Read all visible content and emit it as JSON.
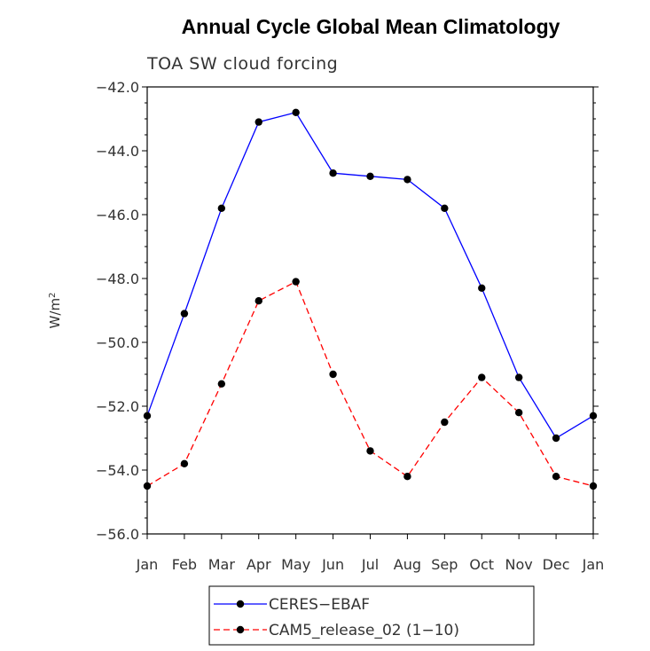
{
  "chart_data": {
    "type": "line",
    "title": "Annual Cycle Global Mean Climatology",
    "subtitle": "TOA SW cloud forcing",
    "ylabel_base": "W/m",
    "ylabel_sup": "2",
    "xlabel": "",
    "categories": [
      "Jan",
      "Feb",
      "Mar",
      "Apr",
      "May",
      "Jun",
      "Jul",
      "Aug",
      "Sep",
      "Oct",
      "Nov",
      "Dec",
      "Jan"
    ],
    "ylim": [
      -56.0,
      -42.0
    ],
    "yticks": [
      -42.0,
      -44.0,
      -46.0,
      -48.0,
      -50.0,
      -52.0,
      -54.0,
      -56.0
    ],
    "ytick_labels": [
      "−42.0",
      "−44.0",
      "−46.0",
      "−48.0",
      "−50.0",
      "−52.0",
      "−54.0",
      "−56.0"
    ],
    "series": [
      {
        "name": "CERES−EBAF",
        "color": "#0000ff",
        "style": "solid",
        "values": [
          -52.3,
          -49.1,
          -45.8,
          -43.1,
          -42.8,
          -44.7,
          -44.8,
          -44.9,
          -45.8,
          -48.3,
          -51.1,
          -53.0,
          -52.3
        ]
      },
      {
        "name": "CAM5_release_02 (1−10)",
        "color": "#ff0000",
        "style": "dashed",
        "values": [
          -54.5,
          -53.8,
          -51.3,
          -48.7,
          -48.1,
          -51.0,
          -53.4,
          -54.2,
          -52.5,
          -51.1,
          -52.2,
          -54.2,
          -54.5
        ]
      }
    ],
    "marker_color": "#000000",
    "grid": false,
    "legend_position": "bottom-center"
  }
}
